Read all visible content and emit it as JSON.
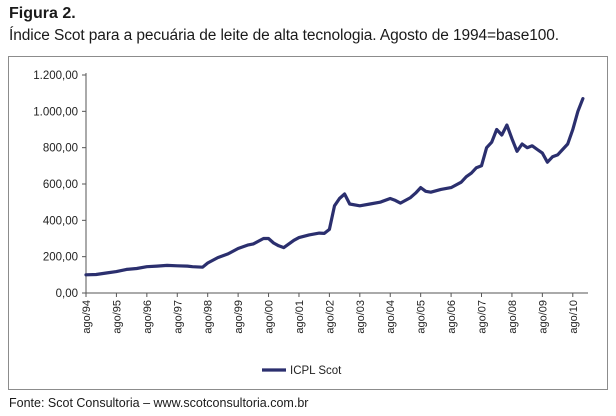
{
  "figure": {
    "label": "Figura 2.",
    "caption": "Índice Scot para a pecuária de leite de alta tecnologia. Agosto de 1994=base100.",
    "source": "Fonte: Scot Consultoria – www.scotconsultoria.com.br"
  },
  "chart_data": {
    "type": "line",
    "title": "",
    "xlabel": "",
    "ylabel": "",
    "ylim": [
      0,
      1200
    ],
    "grid": false,
    "legend_position": "bottom-center",
    "line_color": "#2b2f6e",
    "y_ticks": [
      "0,00",
      "200,00",
      "400,00",
      "600,00",
      "800,00",
      "1.000,00",
      "1.200,00"
    ],
    "y_tick_values": [
      0,
      200,
      400,
      600,
      800,
      1000,
      1200
    ],
    "x_ticks": [
      "ago/94",
      "ago/95",
      "ago/96",
      "ago/97",
      "ago/98",
      "ago/99",
      "ago/00",
      "ago/01",
      "ago/02",
      "ago/03",
      "ago/04",
      "ago/05",
      "ago/06",
      "ago/07",
      "ago/08",
      "ago/09",
      "ago/10"
    ],
    "series": [
      {
        "name": "ICPL Scot",
        "x": [
          "1994-08",
          "1994-12",
          "1995-04",
          "1995-08",
          "1995-12",
          "1996-04",
          "1996-08",
          "1996-12",
          "1997-04",
          "1997-08",
          "1997-12",
          "1998-02",
          "1998-06",
          "1998-08",
          "1998-12",
          "1999-04",
          "1999-08",
          "1999-12",
          "2000-02",
          "2000-06",
          "2000-08",
          "2000-10",
          "2000-12",
          "2001-02",
          "2001-06",
          "2001-08",
          "2001-12",
          "2002-04",
          "2002-06",
          "2002-08",
          "2002-10",
          "2002-12",
          "2003-02",
          "2003-04",
          "2003-08",
          "2003-12",
          "2004-04",
          "2004-08",
          "2004-10",
          "2004-12",
          "2005-04",
          "2005-06",
          "2005-08",
          "2005-10",
          "2005-12",
          "2006-04",
          "2006-08",
          "2006-12",
          "2007-02",
          "2007-04",
          "2007-06",
          "2007-08",
          "2007-10",
          "2007-12",
          "2008-02",
          "2008-04",
          "2008-06",
          "2008-08",
          "2008-10",
          "2008-12",
          "2009-02",
          "2009-04",
          "2009-06",
          "2009-08",
          "2009-10",
          "2009-12",
          "2010-02",
          "2010-04",
          "2010-06",
          "2010-08",
          "2010-10",
          "2010-12"
        ],
        "values": [
          100,
          102,
          110,
          118,
          130,
          135,
          145,
          148,
          152,
          150,
          148,
          145,
          142,
          165,
          195,
          215,
          245,
          265,
          270,
          300,
          300,
          275,
          260,
          250,
          290,
          305,
          320,
          330,
          328,
          350,
          480,
          520,
          545,
          490,
          480,
          490,
          500,
          520,
          510,
          495,
          525,
          550,
          580,
          560,
          555,
          570,
          580,
          610,
          640,
          660,
          690,
          700,
          800,
          830,
          900,
          870,
          925,
          850,
          780,
          820,
          800,
          810,
          790,
          770,
          720,
          750,
          760,
          790,
          820,
          900,
          1000,
          1070
        ]
      }
    ]
  }
}
